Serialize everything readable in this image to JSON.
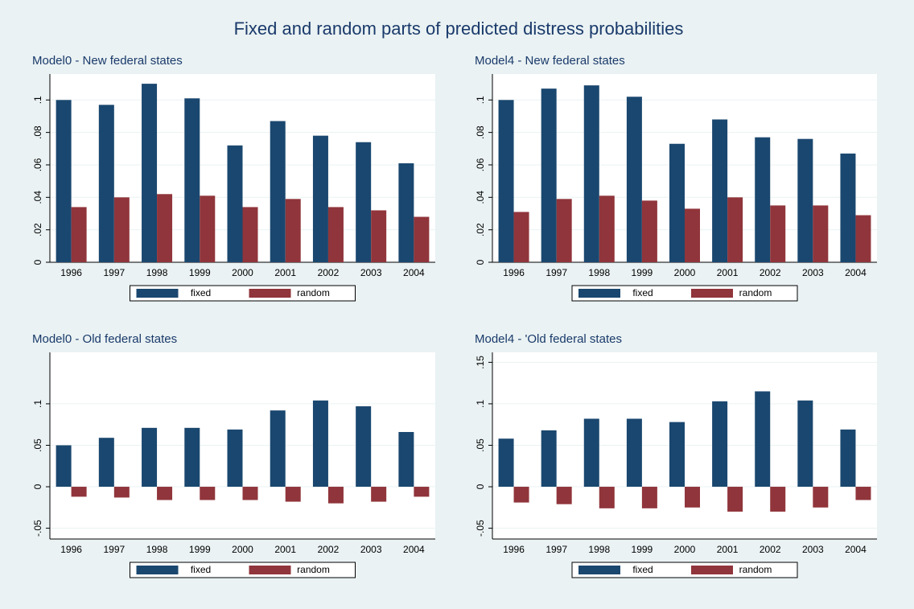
{
  "title": "Fixed and random parts of predicted distress probabilities",
  "chart_data": [
    {
      "type": "bar",
      "title": "Model0 - New federal states",
      "categories": [
        "1996",
        "1997",
        "1998",
        "1999",
        "2000",
        "2001",
        "2002",
        "2003",
        "2004"
      ],
      "series": [
        {
          "name": "fixed",
          "color": "#1a476f",
          "values": [
            0.1,
            0.097,
            0.11,
            0.101,
            0.072,
            0.087,
            0.078,
            0.074,
            0.061
          ]
        },
        {
          "name": "random",
          "color": "#90353b",
          "values": [
            0.034,
            0.04,
            0.042,
            0.041,
            0.034,
            0.039,
            0.034,
            0.032,
            0.028
          ]
        }
      ],
      "ylim": [
        0,
        0.116
      ],
      "yticks": [
        0,
        {
          "value": 0.02,
          "label": ".02"
        },
        {
          "value": 0.04,
          "label": ".04"
        },
        {
          "value": 0.06,
          "label": ".06"
        },
        {
          "value": 0.08,
          "label": ".08"
        },
        {
          "value": 0.1,
          "label": ".1"
        }
      ],
      "grid": true
    },
    {
      "type": "bar",
      "title": "Model4 - New federal states",
      "categories": [
        "1996",
        "1997",
        "1998",
        "1999",
        "2000",
        "2001",
        "2002",
        "2003",
        "2004"
      ],
      "series": [
        {
          "name": "fixed",
          "color": "#1a476f",
          "values": [
            0.1,
            0.107,
            0.109,
            0.102,
            0.073,
            0.088,
            0.077,
            0.076,
            0.067
          ]
        },
        {
          "name": "random",
          "color": "#90353b",
          "values": [
            0.031,
            0.039,
            0.041,
            0.038,
            0.033,
            0.04,
            0.035,
            0.035,
            0.029
          ]
        }
      ],
      "ylim": [
        0,
        0.116
      ],
      "yticks": [
        0,
        {
          "value": 0.02,
          "label": ".02"
        },
        {
          "value": 0.04,
          "label": ".04"
        },
        {
          "value": 0.06,
          "label": ".06"
        },
        {
          "value": 0.08,
          "label": ".08"
        },
        {
          "value": 0.1,
          "label": ".1"
        }
      ],
      "grid": true
    },
    {
      "type": "bar",
      "title": "Model0 - Old federal states",
      "categories": [
        "1996",
        "1997",
        "1998",
        "1999",
        "2000",
        "2001",
        "2002",
        "2003",
        "2004"
      ],
      "series": [
        {
          "name": "fixed",
          "color": "#1a476f",
          "values": [
            0.05,
            0.059,
            0.071,
            0.071,
            0.069,
            0.092,
            0.104,
            0.097,
            0.066
          ]
        },
        {
          "name": "random",
          "color": "#90353b",
          "values": [
            -0.012,
            -0.013,
            -0.016,
            -0.016,
            -0.016,
            -0.018,
            -0.02,
            -0.018,
            -0.012
          ]
        }
      ],
      "ylim": [
        -0.063,
        0.162
      ],
      "yticks": [
        {
          "value": -0.05,
          "label": "-.05"
        },
        0,
        {
          "value": 0.05,
          "label": ".05"
        },
        {
          "value": 0.1,
          "label": ".1"
        }
      ],
      "grid": true
    },
    {
      "type": "bar",
      "title": "Model4 - 'Old federal states",
      "categories": [
        "1996",
        "1997",
        "1998",
        "1999",
        "2000",
        "2001",
        "2002",
        "2003",
        "2004"
      ],
      "series": [
        {
          "name": "fixed",
          "color": "#1a476f",
          "values": [
            0.058,
            0.068,
            0.082,
            0.082,
            0.078,
            0.103,
            0.115,
            0.104,
            0.069
          ]
        },
        {
          "name": "random",
          "color": "#90353b",
          "values": [
            -0.019,
            -0.021,
            -0.026,
            -0.026,
            -0.025,
            -0.03,
            -0.03,
            -0.025,
            -0.016
          ]
        }
      ],
      "ylim": [
        -0.063,
        0.162
      ],
      "yticks": [
        {
          "value": -0.05,
          "label": "-.05"
        },
        0,
        {
          "value": 0.05,
          "label": ".05"
        },
        {
          "value": 0.1,
          "label": ".1"
        },
        {
          "value": 0.15,
          "label": ".15"
        }
      ],
      "grid": true
    }
  ]
}
